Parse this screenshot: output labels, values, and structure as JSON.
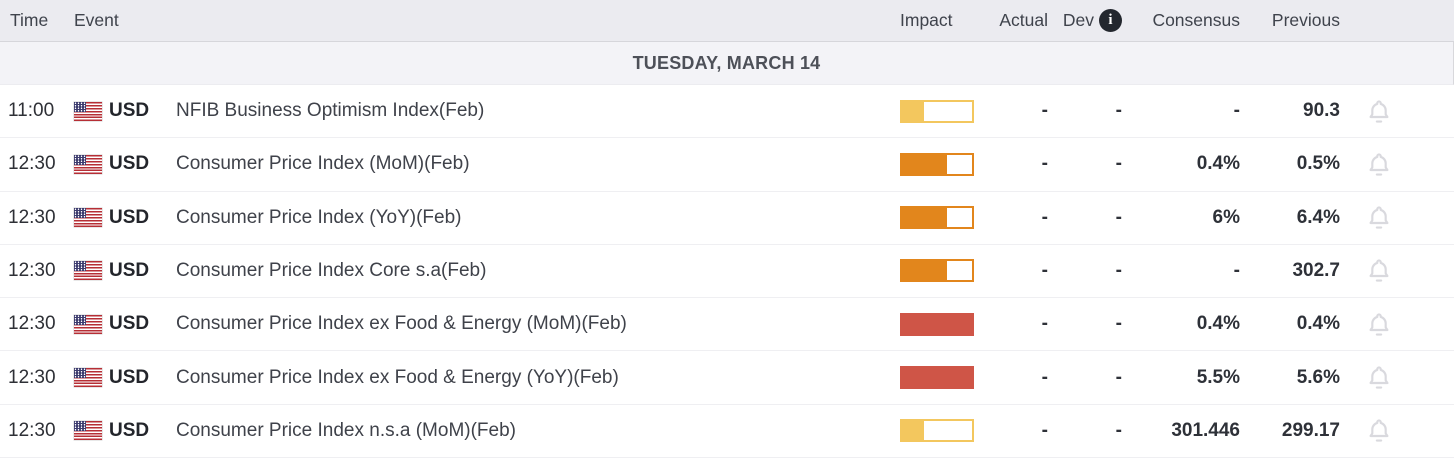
{
  "header": {
    "time": "Time",
    "event": "Event",
    "impact": "Impact",
    "actual": "Actual",
    "dev": "Dev",
    "dev_info_glyph": "i",
    "consensus": "Consensus",
    "previous": "Previous"
  },
  "date_banner": "TUESDAY, MARCH 14",
  "impact_levels": {
    "low": {
      "color": "#f3c75e",
      "fill_pct": 32
    },
    "medium": {
      "color": "#e2861c",
      "fill_pct": 64
    },
    "high": {
      "color": "#cf5547",
      "fill_pct": 100
    }
  },
  "colors": {
    "header_bg": "#ebebf0",
    "date_banner_bg": "#f3f3f7",
    "bell_icon": "#d9d9de",
    "info_icon_bg": "#23272e"
  },
  "rows": [
    {
      "time": "11:00",
      "currency": "USD",
      "country": "United States",
      "event": "NFIB Business Optimism Index(Feb)",
      "impact": "low",
      "actual": "-",
      "dev": "-",
      "consensus": "-",
      "previous": "90.3"
    },
    {
      "time": "12:30",
      "currency": "USD",
      "country": "United States",
      "event": "Consumer Price Index (MoM)(Feb)",
      "impact": "medium",
      "actual": "-",
      "dev": "-",
      "consensus": "0.4%",
      "previous": "0.5%"
    },
    {
      "time": "12:30",
      "currency": "USD",
      "country": "United States",
      "event": "Consumer Price Index (YoY)(Feb)",
      "impact": "medium",
      "actual": "-",
      "dev": "-",
      "consensus": "6%",
      "previous": "6.4%"
    },
    {
      "time": "12:30",
      "currency": "USD",
      "country": "United States",
      "event": "Consumer Price Index Core s.a(Feb)",
      "impact": "medium",
      "actual": "-",
      "dev": "-",
      "consensus": "-",
      "previous": "302.7"
    },
    {
      "time": "12:30",
      "currency": "USD",
      "country": "United States",
      "event": "Consumer Price Index ex Food & Energy (MoM)(Feb)",
      "impact": "high",
      "actual": "-",
      "dev": "-",
      "consensus": "0.4%",
      "previous": "0.4%"
    },
    {
      "time": "12:30",
      "currency": "USD",
      "country": "United States",
      "event": "Consumer Price Index ex Food & Energy (YoY)(Feb)",
      "impact": "high",
      "actual": "-",
      "dev": "-",
      "consensus": "5.5%",
      "previous": "5.6%"
    },
    {
      "time": "12:30",
      "currency": "USD",
      "country": "United States",
      "event": "Consumer Price Index n.s.a (MoM)(Feb)",
      "impact": "low",
      "actual": "-",
      "dev": "-",
      "consensus": "301.446",
      "previous": "299.17"
    }
  ]
}
